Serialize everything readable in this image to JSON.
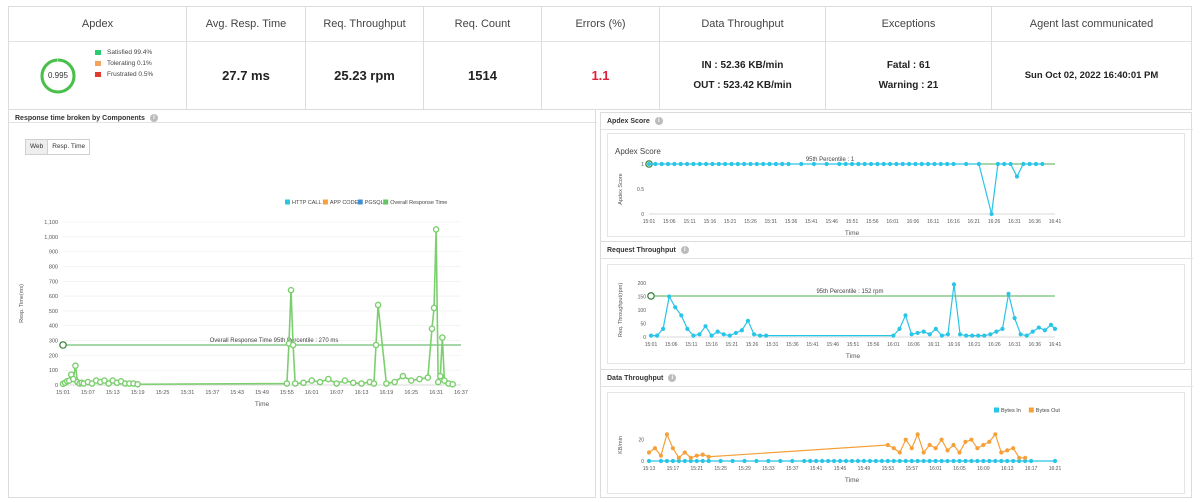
{
  "kpis": {
    "apdex": {
      "header": "Apdex",
      "score": "0.995",
      "legend": [
        {
          "label": "Satisfied 99.4%",
          "color": "#2ecc71"
        },
        {
          "label": "Tolerating 0.1%",
          "color": "#f5a25d"
        },
        {
          "label": "Frustrated 0.5%",
          "color": "#e03a2f"
        }
      ]
    },
    "avg_resp_time": {
      "header": "Avg. Resp. Time",
      "value": "27.7 ms"
    },
    "req_throughput": {
      "header": "Req. Throughput",
      "value": "25.23 rpm"
    },
    "req_count": {
      "header": "Req. Count",
      "value": "1514"
    },
    "errors": {
      "header": "Errors (%)",
      "value": "1.1",
      "color": "#e0203a"
    },
    "data_throughput": {
      "header": "Data Throughput",
      "in": "IN : 52.36 KB/min",
      "out": "OUT : 523.42 KB/min"
    },
    "exceptions": {
      "header": "Exceptions",
      "fatal": "Fatal : 61",
      "warning": "Warning : 21"
    },
    "agent": {
      "header": "Agent last communicated",
      "value": "Sun Oct 02, 2022 16:40:01 PM"
    }
  },
  "panels": {
    "components": {
      "title": "Response time broken by Components",
      "buttons": [
        "Web",
        "Resp. Time"
      ]
    },
    "apdex_score": {
      "title": "Apdex Score"
    },
    "request_throughput": {
      "title": "Request Throughput"
    },
    "data_throughput": {
      "title": "Data Throughput"
    }
  },
  "chart_data": [
    {
      "type": "line",
      "id": "components",
      "title": "",
      "xlabel": "Time",
      "ylabel": "Resp. Time(ms)",
      "ylim": [
        0,
        1100
      ],
      "yticks": [
        0,
        100,
        200,
        300,
        400,
        500,
        600,
        700,
        800,
        900,
        1000,
        1100
      ],
      "ytick_labels": [
        "0",
        "100",
        "200",
        "300",
        "400",
        "500",
        "600",
        "700",
        "800",
        "900",
        "1,000",
        "1,100"
      ],
      "xtick_labels": [
        "15:01",
        "15:07",
        "15:13",
        "15:19",
        "15:25",
        "15:31",
        "15:37",
        "15:43",
        "15:49",
        "15:55",
        "16:01",
        "16:07",
        "16:13",
        "16:19",
        "16:25",
        "16:31",
        "16:37"
      ],
      "legend": [
        {
          "name": "HTTP CALL",
          "color": "#29c5e6"
        },
        {
          "name": "APP CODE",
          "color": "#f5a03a"
        },
        {
          "name": "PGSQL",
          "color": "#3d8fd1"
        },
        {
          "name": "Overall Response Time",
          "color": "#62c462"
        }
      ],
      "reference_line": {
        "label": "Overall Response Time 95th Percentile : 270 ms",
        "value": 270,
        "color": "#4caf50"
      },
      "series": [
        {
          "name": "Overall Response Time",
          "color": "#7ccf6e",
          "x": [
            0,
            0.5,
            1,
            1.5,
            2,
            2.5,
            3,
            3.5,
            4,
            4.5,
            5,
            6,
            7,
            8,
            9,
            10,
            11,
            12,
            13,
            14,
            15,
            16,
            17,
            18,
            54,
            54.5,
            55,
            55.5,
            56,
            58,
            60,
            62,
            64,
            66,
            68,
            70,
            72,
            74,
            75,
            75.5,
            76,
            78,
            80,
            82,
            84,
            86,
            88,
            89,
            89.5,
            90,
            90.5,
            91,
            91.5,
            92,
            93,
            94
          ],
          "y": [
            8,
            15,
            25,
            30,
            70,
            40,
            130,
            20,
            10,
            15,
            10,
            20,
            10,
            30,
            20,
            30,
            10,
            30,
            15,
            25,
            10,
            10,
            10,
            5,
            10,
            280,
            640,
            270,
            10,
            15,
            30,
            20,
            40,
            10,
            30,
            15,
            10,
            20,
            10,
            270,
            540,
            10,
            20,
            60,
            30,
            40,
            50,
            380,
            520,
            1050,
            20,
            60,
            320,
            30,
            10,
            5
          ]
        }
      ]
    },
    {
      "type": "line",
      "id": "apdex_score",
      "title": "Apdex Score",
      "xlabel": "Time",
      "ylabel": "Apdex Score",
      "ylim": [
        0,
        1
      ],
      "ytick_labels": [
        "0",
        "0.5",
        "1"
      ],
      "xtick_labels": [
        "15:01",
        "15:06",
        "15:11",
        "15:16",
        "15:21",
        "15:26",
        "15:31",
        "15:36",
        "15:41",
        "15:46",
        "15:51",
        "15:56",
        "16:01",
        "16:06",
        "16:11",
        "16:16",
        "16:21",
        "16:26",
        "16:31",
        "16:36",
        "16:41"
      ],
      "reference_line": {
        "label": "95th Percentile : 1",
        "value": 1,
        "color": "#4caf50"
      },
      "series": [
        {
          "name": "Apdex",
          "color": "#29c5e6",
          "x": [
            0,
            0.5,
            1,
            1.5,
            2,
            2.5,
            3,
            3.5,
            4,
            4.5,
            5,
            5.5,
            6,
            6.5,
            7,
            7.5,
            8,
            8.5,
            9,
            9.5,
            10,
            10.5,
            11,
            12,
            13,
            14,
            15,
            15.5,
            16,
            16.5,
            17,
            17.5,
            18,
            18.5,
            19,
            19.5,
            20,
            20.5,
            21,
            21.5,
            22,
            22.5,
            23,
            23.5,
            24,
            25,
            26,
            27,
            27.5,
            28,
            28.5,
            29,
            29.5,
            30,
            30.5,
            31
          ],
          "y": [
            1,
            1,
            1,
            1,
            1,
            1,
            1,
            1,
            1,
            1,
            1,
            1,
            1,
            1,
            1,
            1,
            1,
            1,
            1,
            1,
            1,
            1,
            1,
            1,
            1,
            1,
            1,
            1,
            1,
            1,
            1,
            1,
            1,
            1,
            1,
            1,
            1,
            1,
            1,
            1,
            1,
            1,
            1,
            1,
            1,
            1,
            1,
            0,
            1,
            1,
            1,
            0.75,
            1,
            1,
            1,
            1
          ]
        }
      ]
    },
    {
      "type": "line",
      "id": "request_throughput",
      "title": "",
      "xlabel": "Time",
      "ylabel": "Req. Throughput(rpm)",
      "ylim": [
        0,
        200
      ],
      "ytick_labels": [
        "0",
        "50",
        "100",
        "150",
        "200"
      ],
      "xtick_labels": [
        "15:01",
        "15:06",
        "15:11",
        "15:16",
        "15:21",
        "15:26",
        "15:31",
        "15:36",
        "15:41",
        "15:46",
        "15:51",
        "15:56",
        "16:01",
        "16:06",
        "16:11",
        "16:16",
        "16:21",
        "16:26",
        "16:31",
        "16:36",
        "16:41"
      ],
      "reference_line": {
        "label": "95th Percentile : 152 rpm",
        "value": 152,
        "color": "#4caf50"
      },
      "series": [
        {
          "name": "Requests",
          "color": "#29c5e6",
          "x": [
            0,
            0.3,
            0.6,
            0.9,
            1.2,
            1.5,
            1.8,
            2.1,
            2.4,
            2.7,
            3,
            3.3,
            3.6,
            3.9,
            4.2,
            4.5,
            4.8,
            5.1,
            5.4,
            5.7,
            12,
            12.3,
            12.6,
            12.9,
            13.2,
            13.5,
            13.8,
            14.1,
            14.4,
            14.7,
            15,
            15.3,
            15.6,
            15.9,
            16.2,
            16.5,
            16.8,
            17.1,
            17.4,
            17.7,
            18,
            18.3,
            18.6,
            18.9,
            19.2,
            19.5,
            19.8,
            20
          ],
          "y": [
            5,
            5,
            30,
            150,
            110,
            80,
            30,
            5,
            10,
            40,
            5,
            20,
            10,
            5,
            15,
            25,
            60,
            10,
            5,
            5,
            5,
            30,
            80,
            10,
            15,
            20,
            10,
            30,
            5,
            10,
            195,
            10,
            5,
            5,
            5,
            5,
            10,
            20,
            30,
            160,
            70,
            10,
            5,
            20,
            35,
            25,
            45,
            30
          ]
        }
      ]
    },
    {
      "type": "line",
      "id": "data_throughput",
      "title": "",
      "xlabel": "Time",
      "ylabel": "KB/min",
      "ylim": [
        0,
        30
      ],
      "ytick_labels": [
        "0",
        "20"
      ],
      "xtick_labels": [
        "15:13",
        "15:17",
        "15:21",
        "15:25",
        "15:29",
        "15:33",
        "15:37",
        "15:41",
        "15:45",
        "15:49",
        "15:53",
        "15:57",
        "16:01",
        "16:05",
        "16:09",
        "16:13",
        "16:17",
        "16:21"
      ],
      "legend": [
        {
          "name": "Bytes In",
          "color": "#29c5e6"
        },
        {
          "name": "Bytes Out",
          "color": "#f5a03a"
        }
      ],
      "series": [
        {
          "name": "Bytes In",
          "color": "#29c5e6",
          "x": [
            0,
            1,
            1.5,
            2,
            2.5,
            3,
            3.5,
            4,
            4.5,
            5,
            6,
            7,
            8,
            9,
            10,
            11,
            12,
            13,
            13.5,
            14,
            14.5,
            15,
            15.5,
            16,
            16.5,
            17,
            17.5,
            18,
            18.5,
            19,
            19.5,
            20,
            20.5,
            21,
            21.5,
            22,
            22.5,
            23,
            23.5,
            24,
            24.5,
            25,
            25.5,
            26,
            26.5,
            27,
            27.5,
            28,
            28.5,
            29,
            29.5,
            30,
            30.5,
            31,
            31.5,
            32,
            34
          ],
          "y": [
            0,
            0,
            0,
            0,
            0,
            0,
            0,
            0,
            0,
            0,
            0,
            0,
            0,
            0,
            0,
            0,
            0,
            0,
            0,
            0,
            0,
            0,
            0,
            0,
            0,
            0,
            0,
            0,
            0,
            0,
            0,
            0,
            0,
            0,
            0,
            0,
            0,
            0,
            0,
            0,
            0,
            0,
            0,
            0,
            0,
            0,
            0,
            0,
            0,
            0,
            0,
            0,
            0,
            0,
            0,
            0,
            0
          ]
        },
        {
          "name": "Bytes Out",
          "color": "#f5a03a",
          "x": [
            0,
            0.5,
            1,
            1.5,
            2,
            2.5,
            3,
            3.5,
            4,
            4.5,
            5,
            20,
            20.5,
            21,
            21.5,
            22,
            22.5,
            23,
            23.5,
            24,
            24.5,
            25,
            25.5,
            26,
            26.5,
            27,
            27.5,
            28,
            28.5,
            29,
            29.5,
            30,
            30.5,
            31,
            31.5
          ],
          "y": [
            8,
            12,
            5,
            25,
            12,
            3,
            8,
            3,
            5,
            6,
            4,
            15,
            12,
            8,
            20,
            12,
            25,
            8,
            15,
            12,
            20,
            10,
            15,
            8,
            18,
            20,
            12,
            15,
            18,
            25,
            8,
            10,
            12,
            3,
            3
          ]
        }
      ]
    }
  ]
}
